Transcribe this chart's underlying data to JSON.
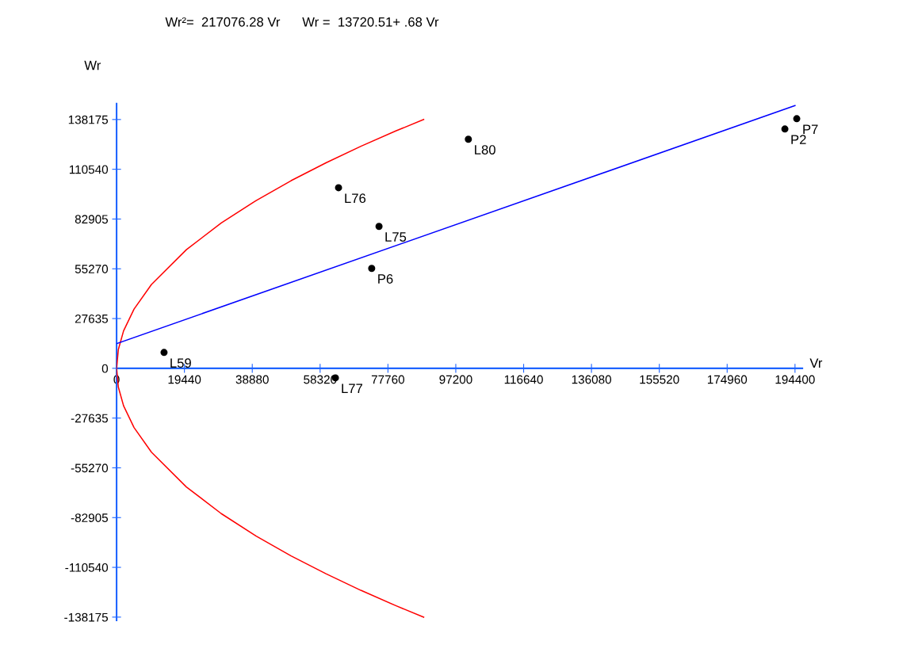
{
  "chart_data": {
    "type": "scatter",
    "xlabel": "Vr",
    "ylabel": "Wr",
    "annotations": [
      "Wr²=  217076.28 Vr      Wr =  13720.51+ .68 Vr",
      {
        "text": "L59",
        "x": 13600,
        "y": 8800
      },
      {
        "text": "L77",
        "x": 62700,
        "y": -5300
      },
      {
        "text": "L76",
        "x": 63600,
        "y": 100300
      },
      {
        "text": "L75",
        "x": 75200,
        "y": 78800
      },
      {
        "text": "P6",
        "x": 73100,
        "y": 55500
      },
      {
        "text": "L80",
        "x": 100800,
        "y": 127200
      },
      {
        "text": "P2",
        "x": 191500,
        "y": 132900
      },
      {
        "text": "P7",
        "x": 194900,
        "y": 138600
      }
    ],
    "series": [
      {
        "color": "#000000",
        "marker": "circle",
        "x": [
          13600,
          62700,
          63600,
          75200,
          73100,
          100800,
          191500,
          194900
        ],
        "values": [
          8800,
          -5300,
          100300,
          78800,
          55500,
          127200,
          132900,
          138600
        ]
      },
      {
        "type": "line",
        "color": "#ff0000",
        "x": [
          88000,
          80000,
          70000,
          60000,
          50000,
          40000,
          30000,
          20000,
          10000,
          5000,
          2000,
          500,
          0,
          500,
          2000,
          5000,
          10000,
          20000,
          30000,
          40000,
          50000,
          60000,
          70000,
          80000,
          88000
        ],
        "values": [
          138200,
          131800,
          123300,
          114100,
          104200,
          93200,
          80700,
          65900,
          46600,
          32900,
          20800,
          10400,
          0,
          -10400,
          -20800,
          -32900,
          -46600,
          -65900,
          -80700,
          -93200,
          -104200,
          -114100,
          -123300,
          -131800,
          -138200
        ]
      },
      {
        "type": "line",
        "color": "#0000ff",
        "x": [
          0,
          194400
        ],
        "values": [
          13700,
          145900
        ]
      }
    ],
    "xlim": [
      0,
      196500
    ],
    "ylim": [
      -140000,
      147000
    ],
    "xticks": [
      0,
      19440,
      38880,
      58320,
      77760,
      97200,
      116640,
      136080,
      155520,
      174960,
      194400
    ],
    "yticks": [
      -138175,
      -110540,
      -82905,
      -55270,
      -27635,
      0,
      27635,
      55270,
      82905,
      110540,
      138175
    ],
    "grid": false,
    "legend": false
  }
}
